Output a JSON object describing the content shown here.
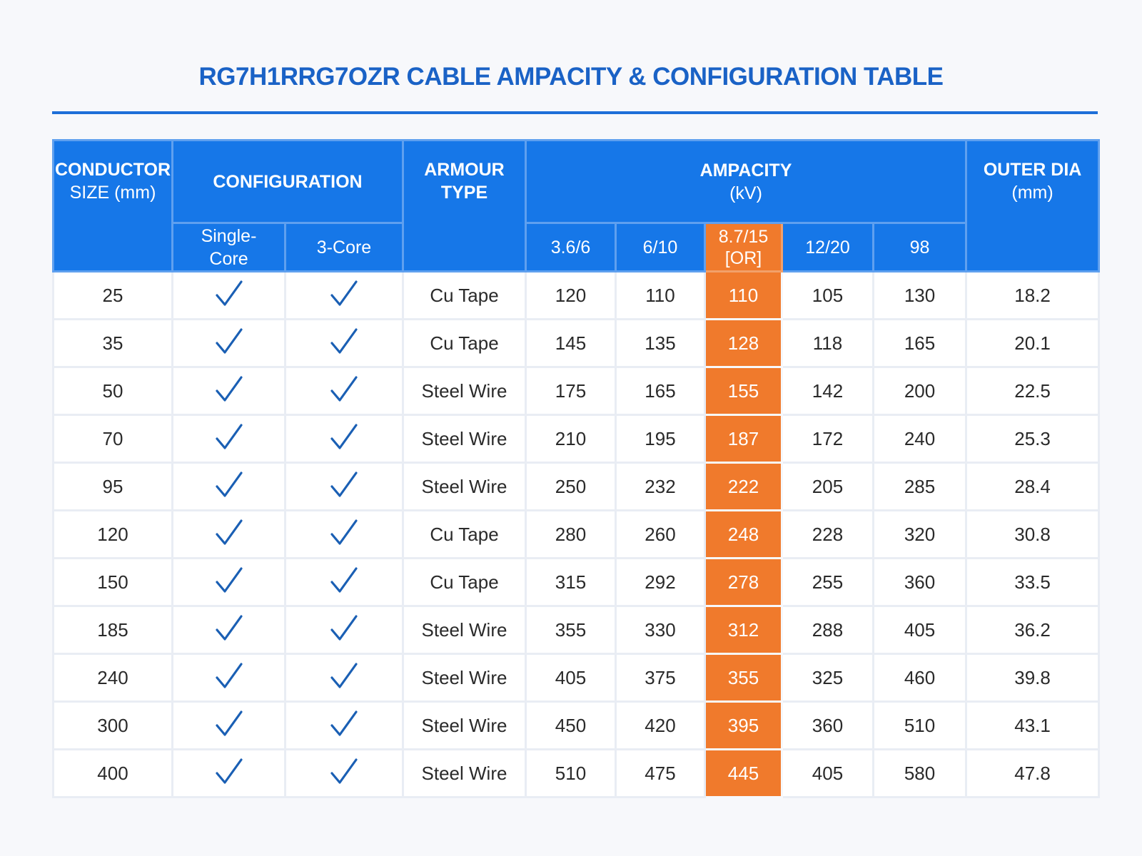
{
  "title": {
    "left": "RG7H1R",
    "right": "RG7OZR CABLE AMPACITY & CONFIGURATION TABLE"
  },
  "header": {
    "conductor_line1": "CONDUCTOR",
    "conductor_line2": "SIZE (mm)",
    "configuration": "CONFIGURATION",
    "single_core_line1": "Single-",
    "single_core_line2": "Core",
    "three_core": "3-Core",
    "armour_line1": "ARMOUR",
    "armour_line2": "TYPE",
    "ampacity_line1": "AMPACITY",
    "ampacity_line2": "(kV)",
    "outer_line1": "OUTER DIA",
    "outer_line2": "(mm)",
    "voltages": [
      "3.6/6",
      "6/10",
      "8.7/15 [OR]",
      "12/20",
      "98"
    ]
  },
  "colors": {
    "header_blue": "#1677e8",
    "highlight_orange": "#f07a2c",
    "check_blue": "#1a5fb4"
  },
  "icons": {
    "config_mark": "checkmark-icon"
  },
  "rows": [
    {
      "size": "25",
      "single": true,
      "three": true,
      "armour": "Cu Tape",
      "amp": [
        "120",
        "110",
        "110",
        "105",
        "130"
      ],
      "dia": "18.2"
    },
    {
      "size": "35",
      "single": true,
      "three": true,
      "armour": "Cu Tape",
      "amp": [
        "145",
        "135",
        "128",
        "118",
        "165"
      ],
      "dia": "20.1"
    },
    {
      "size": "50",
      "single": true,
      "three": true,
      "armour": "Steel Wire",
      "amp": [
        "175",
        "165",
        "155",
        "142",
        "200"
      ],
      "dia": "22.5"
    },
    {
      "size": "70",
      "single": true,
      "three": true,
      "armour": "Steel Wire",
      "amp": [
        "210",
        "195",
        "187",
        "172",
        "240"
      ],
      "dia": "25.3"
    },
    {
      "size": "95",
      "single": true,
      "three": true,
      "armour": "Steel Wire",
      "amp": [
        "250",
        "232",
        "222",
        "205",
        "285"
      ],
      "dia": "28.4"
    },
    {
      "size": "120",
      "single": true,
      "three": true,
      "armour": "Cu Tape",
      "amp": [
        "280",
        "260",
        "248",
        "228",
        "320"
      ],
      "dia": "30.8"
    },
    {
      "size": "150",
      "single": true,
      "three": true,
      "armour": "Cu Tape",
      "amp": [
        "315",
        "292",
        "278",
        "255",
        "360"
      ],
      "dia": "33.5"
    },
    {
      "size": "185",
      "single": true,
      "three": true,
      "armour": "Steel Wire",
      "amp": [
        "355",
        "330",
        "312",
        "288",
        "405"
      ],
      "dia": "36.2"
    },
    {
      "size": "240",
      "single": true,
      "three": true,
      "armour": "Steel Wire",
      "amp": [
        "405",
        "375",
        "355",
        "325",
        "460"
      ],
      "dia": "39.8"
    },
    {
      "size": "300",
      "single": true,
      "three": true,
      "armour": "Steel Wire",
      "amp": [
        "450",
        "420",
        "395",
        "360",
        "510"
      ],
      "dia": "43.1"
    },
    {
      "size": "400",
      "single": true,
      "three": true,
      "armour": "Steel Wire",
      "amp": [
        "510",
        "475",
        "445",
        "405",
        "580"
      ],
      "dia": "47.8"
    }
  ]
}
